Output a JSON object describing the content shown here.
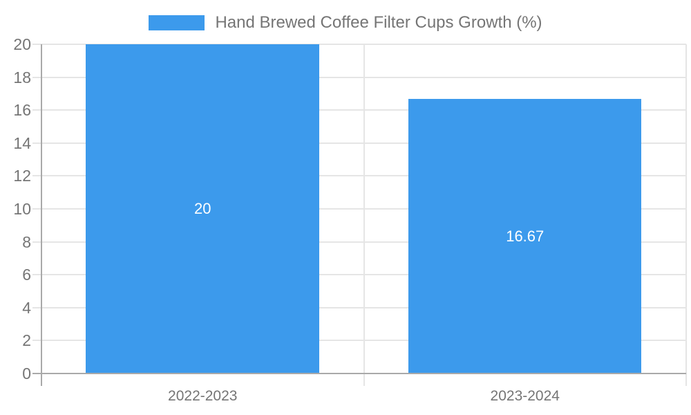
{
  "chart_data": {
    "type": "bar",
    "categories": [
      "2022-2023",
      "2023-2024"
    ],
    "values": [
      20,
      16.67
    ],
    "value_labels": [
      "20",
      "16.67"
    ],
    "series": [
      {
        "name": "Hand Brewed Coffee Filter Cups Growth (%)",
        "values": [
          20,
          16.67
        ]
      }
    ],
    "title": "",
    "xlabel": "",
    "ylabel": "",
    "ylim": [
      0,
      20
    ],
    "ytick_step": 2,
    "yticks": [
      0,
      2,
      4,
      6,
      8,
      10,
      12,
      14,
      16,
      18,
      20
    ],
    "grid": true,
    "legend": [
      "Hand Brewed Coffee Filter Cups Growth (%)"
    ],
    "legend_position": "top-center"
  },
  "colors": {
    "bar": "#3c9aec",
    "bar_label_text": "#ffffff",
    "gridline": "#e5e5e5",
    "axis_line": "#a9a9a9",
    "label_text": "#757575",
    "background": "#ffffff"
  }
}
